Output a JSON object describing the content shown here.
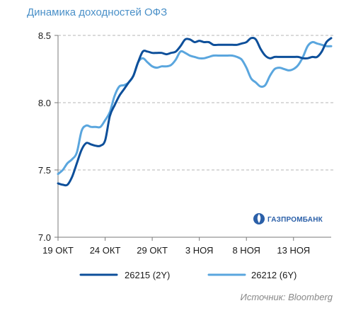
{
  "title": "Динамика доходностей ОФЗ",
  "source": "Источник: Bloomberg",
  "logo": {
    "text": "ГАЗПРОМБАНК"
  },
  "colors": {
    "series_2y": "#0d4f9a",
    "series_6y": "#5aa6de",
    "grid": "#b5b5b5",
    "axis": "#7a7a7a"
  },
  "chart_data": {
    "type": "line",
    "title": "Динамика доходностей ОФЗ",
    "xlabel": "",
    "ylabel": "",
    "ylim": [
      7.0,
      8.5
    ],
    "yticks": [
      7.0,
      7.5,
      8.0,
      8.5
    ],
    "ytick_labels": [
      "7.0",
      "7.5",
      "8.0",
      "8.5"
    ],
    "xticks": [
      0,
      5,
      10,
      15,
      20,
      25
    ],
    "xtick_labels": [
      "19 ОКТ",
      "24 ОКТ",
      "29 ОКТ",
      "3 НОЯ",
      "8 НОЯ",
      "13 НОЯ"
    ],
    "xlim": [
      0,
      29
    ],
    "grid": "horizontal-dashed",
    "legend": "bottom",
    "series": [
      {
        "name": "26215 (2Y)",
        "x": [
          0,
          0.5,
          1,
          1.5,
          2,
          2.5,
          3,
          3.5,
          4,
          4.5,
          5,
          5.5,
          6,
          6.5,
          7,
          7.5,
          8,
          8.5,
          9,
          9.5,
          10,
          10.5,
          11,
          11.5,
          12,
          12.5,
          13,
          13.5,
          14,
          14.5,
          15,
          15.5,
          16,
          16.5,
          17,
          17.5,
          18,
          18.5,
          19,
          19.5,
          20,
          20.5,
          21,
          21.5,
          22,
          22.5,
          23,
          23.5,
          24,
          24.5,
          25,
          25.5,
          26,
          26.5,
          27,
          27.5,
          28,
          28.5,
          29
        ],
        "values": [
          7.4,
          7.39,
          7.39,
          7.45,
          7.55,
          7.65,
          7.7,
          7.69,
          7.68,
          7.68,
          7.72,
          7.9,
          7.98,
          8.05,
          8.1,
          8.15,
          8.2,
          8.3,
          8.38,
          8.38,
          8.37,
          8.37,
          8.37,
          8.36,
          8.37,
          8.38,
          8.42,
          8.47,
          8.47,
          8.45,
          8.46,
          8.45,
          8.45,
          8.43,
          8.43,
          8.43,
          8.43,
          8.43,
          8.43,
          8.44,
          8.45,
          8.48,
          8.47,
          8.4,
          8.35,
          8.33,
          8.34,
          8.34,
          8.34,
          8.34,
          8.34,
          8.34,
          8.33,
          8.33,
          8.34,
          8.34,
          8.38,
          8.45,
          8.48
        ]
      },
      {
        "name": "26212 (6Y)",
        "x": [
          0,
          0.5,
          1,
          1.5,
          2,
          2.5,
          3,
          3.5,
          4,
          4.5,
          5,
          5.5,
          6,
          6.5,
          7,
          7.5,
          8,
          8.5,
          9,
          9.5,
          10,
          10.5,
          11,
          11.5,
          12,
          12.5,
          13,
          13.5,
          14,
          14.5,
          15,
          15.5,
          16,
          16.5,
          17,
          17.5,
          18,
          18.5,
          19,
          19.5,
          20,
          20.5,
          21,
          21.5,
          22,
          22.5,
          23,
          23.5,
          24,
          24.5,
          25,
          25.5,
          26,
          26.5,
          27,
          27.5,
          28,
          28.5,
          29
        ],
        "values": [
          7.47,
          7.5,
          7.55,
          7.58,
          7.63,
          7.79,
          7.83,
          7.82,
          7.82,
          7.82,
          7.87,
          7.93,
          8.05,
          8.12,
          8.13,
          8.15,
          8.2,
          8.3,
          8.33,
          8.3,
          8.27,
          8.26,
          8.27,
          8.27,
          8.28,
          8.32,
          8.38,
          8.37,
          8.35,
          8.34,
          8.33,
          8.33,
          8.34,
          8.35,
          8.35,
          8.35,
          8.35,
          8.35,
          8.34,
          8.32,
          8.26,
          8.18,
          8.15,
          8.12,
          8.13,
          8.2,
          8.25,
          8.26,
          8.25,
          8.24,
          8.25,
          8.28,
          8.34,
          8.42,
          8.45,
          8.44,
          8.43,
          8.42,
          8.42
        ]
      }
    ]
  }
}
